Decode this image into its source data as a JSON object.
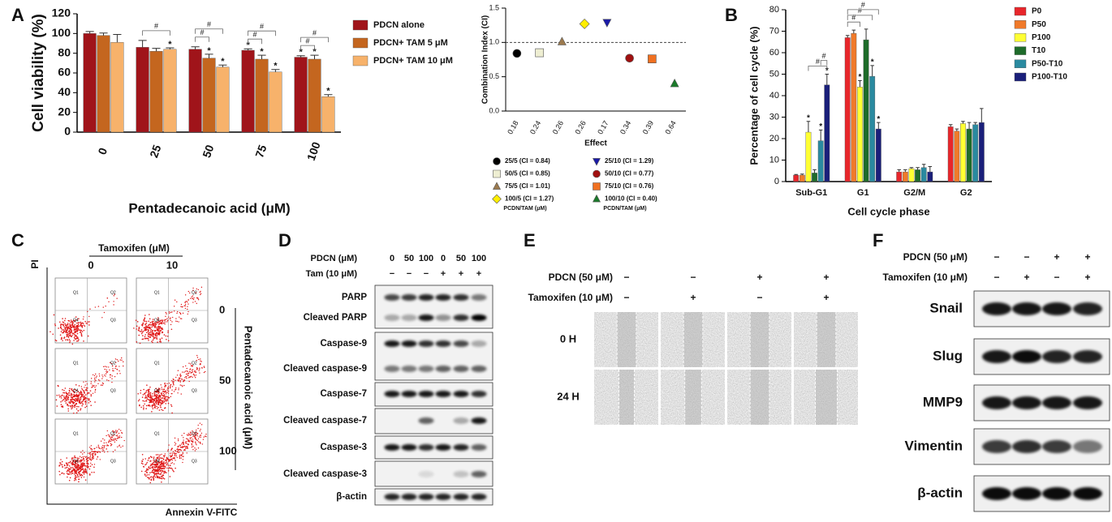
{
  "panel_labels": {
    "a": "A",
    "b": "B",
    "c": "C",
    "d": "D",
    "e": "E",
    "f": "F"
  },
  "chart_data": [
    {
      "type": "bar",
      "y_label": "Cell viability (%)",
      "x_label": "Pentadecanoic acid (μM)",
      "categories": [
        "0",
        "25",
        "50",
        "75",
        "100"
      ],
      "series": [
        {
          "name": "PDCN alone",
          "color": "#a0141a",
          "values": [
            100,
            86,
            84,
            83,
            76
          ],
          "errors": [
            2,
            7,
            2.5,
            1.5,
            1.5
          ],
          "sig": [
            null,
            null,
            null,
            "*",
            "*"
          ]
        },
        {
          "name": "PDCN+ TAM 5 μM",
          "color": "#c4661f",
          "values": [
            98,
            82,
            75,
            74,
            74
          ],
          "errors": [
            2.5,
            3,
            4,
            4,
            4
          ],
          "sig": [
            null,
            null,
            "*",
            "*",
            "*"
          ]
        },
        {
          "name": "PDCN+ TAM 10 μM",
          "color": "#f7b26b",
          "values": [
            91,
            84,
            66,
            61,
            36
          ],
          "errors": [
            8,
            1.5,
            2,
            2.5,
            2
          ],
          "sig": [
            null,
            "*",
            "*",
            "*",
            "*"
          ]
        }
      ],
      "brackets": [
        {
          "category": 1,
          "from": 0,
          "to": 2,
          "label": "#"
        },
        {
          "category": 2,
          "from": 0,
          "to": 1,
          "label": "#"
        },
        {
          "category": 2,
          "from": 0,
          "to": 2,
          "label": "#"
        },
        {
          "category": 3,
          "from": 0,
          "to": 1,
          "label": "#"
        },
        {
          "category": 3,
          "from": 0,
          "to": 2,
          "label": "#"
        },
        {
          "category": 4,
          "from": 0,
          "to": 1,
          "label": "#"
        },
        {
          "category": 4,
          "from": 0,
          "to": 2,
          "label": "#"
        }
      ],
      "ylim": [
        0,
        120
      ],
      "yticks": [
        0,
        20,
        40,
        60,
        80,
        100,
        120
      ]
    },
    {
      "type": "scatter",
      "y_label": "Combination Index (CI)",
      "x_label": "Effect",
      "categories": [
        "0.18",
        "0.24",
        "0.26",
        "0.26",
        "0.17",
        "0.34",
        "0.39",
        "0.64"
      ],
      "series": [
        {
          "name": "25/5 (CI = 0.84)",
          "color": "#000000",
          "marker": "circle",
          "values": [
            0.84,
            null,
            null,
            null,
            null,
            null,
            null,
            null
          ]
        },
        {
          "name": "50/5 (CI = 0.85)",
          "color": "#eeeed2",
          "marker": "square",
          "values": [
            null,
            0.85,
            null,
            null,
            null,
            null,
            null,
            null
          ]
        },
        {
          "name": "75/5 (CI = 1.01)",
          "color": "#9c7a4e",
          "marker": "triangle",
          "values": [
            null,
            null,
            1.01,
            null,
            null,
            null,
            null,
            null
          ]
        },
        {
          "name": "100/5 (CI = 1.27)",
          "color": "#ffee00",
          "marker": "diamond",
          "values": [
            null,
            null,
            null,
            1.27,
            null,
            null,
            null,
            null
          ]
        },
        {
          "name": "25/10 (CI = 1.29)",
          "color": "#1a1aa8",
          "marker": "triangle-down",
          "values": [
            null,
            null,
            null,
            null,
            1.29,
            null,
            null,
            null
          ]
        },
        {
          "name": "50/10 (CI = 0.77)",
          "color": "#a01010",
          "marker": "circle",
          "values": [
            null,
            null,
            null,
            null,
            null,
            0.77,
            null,
            null
          ]
        },
        {
          "name": "75/10 (CI = 0.76)",
          "color": "#f07020",
          "marker": "square",
          "values": [
            null,
            null,
            null,
            null,
            null,
            null,
            0.76,
            null
          ]
        },
        {
          "name": "100/10 (CI = 0.40)",
          "color": "#1a7a2a",
          "marker": "triangle",
          "values": [
            null,
            null,
            null,
            null,
            null,
            null,
            null,
            0.4
          ]
        }
      ],
      "legend_notes": [
        "PCDN/TAM (μM)",
        "PCDN/TAM (μM)"
      ],
      "reference_line": 1,
      "ylim": [
        0,
        1.5
      ],
      "yticks": [
        {
          "value": 0,
          "label": "0.0"
        },
        0.5,
        {
          "value": 1,
          "label": "1.0"
        },
        1.5
      ]
    },
    {
      "type": "bar",
      "y_label": "Percentage of cell cycle (%)",
      "x_label": "Cell cycle phase",
      "categories": [
        "Sub-G1",
        "G1",
        "G2/M",
        "G2"
      ],
      "series": [
        {
          "name": "P0",
          "color": "#e8262b",
          "values": [
            3,
            67,
            4.5,
            25.5
          ],
          "errors": [
            0.3,
            1,
            1,
            1
          ],
          "sig": [
            null,
            null,
            null,
            null
          ]
        },
        {
          "name": "P50",
          "color": "#f07a2a",
          "values": [
            3,
            69,
            4.5,
            23.5
          ],
          "errors": [
            0.5,
            1.5,
            1,
            1
          ],
          "sig": [
            null,
            null,
            null,
            null
          ]
        },
        {
          "name": "P100",
          "color": "#ffff33",
          "values": [
            23,
            44,
            6,
            27
          ],
          "errors": [
            5,
            3,
            0.5,
            1
          ],
          "sig": [
            "*",
            "*",
            null,
            null
          ]
        },
        {
          "name": "T10",
          "color": "#1e6b2a",
          "values": [
            4,
            66,
            5.5,
            24.5
          ],
          "errors": [
            1.5,
            5,
            1,
            3
          ],
          "sig": [
            null,
            null,
            null,
            null
          ]
        },
        {
          "name": "P50-T10",
          "color": "#2a8aa0",
          "values": [
            19,
            49,
            6.5,
            26.5
          ],
          "errors": [
            5,
            5,
            1.5,
            1
          ],
          "sig": [
            "*",
            "*",
            null,
            null
          ]
        },
        {
          "name": "P100-T10",
          "color": "#1a1f7a",
          "values": [
            45,
            24.5,
            4.5,
            27.5
          ],
          "errors": [
            5,
            3,
            2.5,
            6.5
          ],
          "sig": [
            "*",
            "*",
            null,
            null
          ]
        }
      ],
      "brackets": [
        {
          "category": 0,
          "from": 2,
          "to": 5,
          "label": "#"
        },
        {
          "category": 0,
          "from": 4,
          "to": 5,
          "label": "#"
        },
        {
          "category": 1,
          "from": 0,
          "to": 2,
          "label": "#"
        },
        {
          "category": 1,
          "from": 0,
          "to": 4,
          "label": "#"
        },
        {
          "category": 1,
          "from": 0,
          "to": 5,
          "label": "#"
        }
      ],
      "ylim": [
        0,
        80
      ],
      "yticks": [
        0,
        10,
        20,
        30,
        40,
        50,
        60,
        70,
        80
      ]
    }
  ],
  "panel_c": {
    "column_title": "Tamoxifen (μM)",
    "columns": [
      "0",
      "10"
    ],
    "row_title": "Pentadecanoic acid (μM)",
    "rows": [
      "0",
      "50",
      "100"
    ],
    "y_label": "PI",
    "x_label": "Annexin V-FITC",
    "quadrants": [
      "Q1",
      "Q2",
      "Q3",
      "Q4"
    ]
  },
  "panel_d": {
    "rows": [
      {
        "label": "PDCN (μM)",
        "lanes": [
          "0",
          "50",
          "100",
          "0",
          "50",
          "100"
        ]
      },
      {
        "label": "Tam (10 μM)",
        "lanes": [
          "−",
          "−",
          "−",
          "+",
          "+",
          "+"
        ]
      }
    ],
    "blots": [
      "PARP",
      "Cleaved PARP",
      "Caspase-9",
      "Cleaved caspase-9",
      "Caspase-7",
      "Cleaved caspase-7",
      "Caspase-3",
      "Cleaved caspase-3",
      "β-actin"
    ]
  },
  "panel_e": {
    "rows": [
      {
        "label": "PDCN (50 μM)",
        "lanes": [
          "−",
          "−",
          "+",
          "+"
        ]
      },
      {
        "label": "Tamoxifen (10 μM)",
        "lanes": [
          "−",
          "+",
          "−",
          "+"
        ]
      }
    ],
    "times": [
      "0 H",
      "24 H"
    ]
  },
  "panel_f": {
    "rows": [
      {
        "label": "PDCN (50 μM)",
        "lanes": [
          "−",
          "−",
          "+",
          "+"
        ]
      },
      {
        "label": "Tamoxifen (10 μM)",
        "lanes": [
          "−",
          "+",
          "−",
          "+"
        ]
      }
    ],
    "blots": [
      "Snail",
      "Slug",
      "MMP9",
      "Vimentin",
      "β-actin"
    ]
  }
}
